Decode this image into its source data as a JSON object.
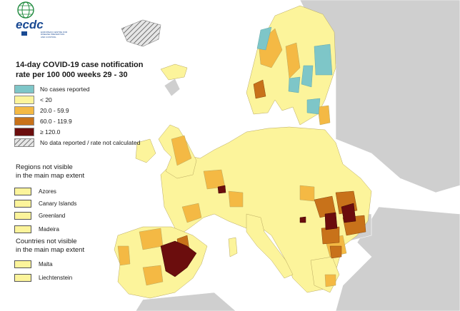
{
  "logo": {
    "name": "ecdc",
    "subtitle_lines": [
      "EUROPEAN CENTRE FOR",
      "DISEASE PREVENTION",
      "AND CONTROL"
    ]
  },
  "legend": {
    "title_line1": "14-day COVID-19 case notification",
    "title_line2": "rate per 100 000 weeks 29 - 30",
    "items": [
      {
        "label": "No cases reported",
        "color": "#7ec6c8"
      },
      {
        "label": "< 20",
        "color": "#fcf49b"
      },
      {
        "label": "20.0 - 59.9",
        "color": "#f4b944"
      },
      {
        "label": "60.0 - 119.9",
        "color": "#c8721a"
      },
      {
        "label": "≥ 120.0",
        "color": "#6b0d0d"
      },
      {
        "label": "No data reported / rate not calculated",
        "color": "hatch"
      }
    ]
  },
  "regions_not_visible": {
    "title_line1": "Regions not visible",
    "title_line2": "in the main map extent",
    "items": [
      "Azores",
      "Canary Islands",
      "Greenland",
      "Madeira"
    ]
  },
  "countries_not_visible": {
    "title_line1": "Countries not visible",
    "title_line2": "in the main map extent",
    "items": [
      "Malta",
      "Liechtenstein"
    ]
  },
  "colors": {
    "background_land": "#cfcfcf",
    "sea": "#ffffff",
    "lowest_class": "#fcf49b"
  }
}
